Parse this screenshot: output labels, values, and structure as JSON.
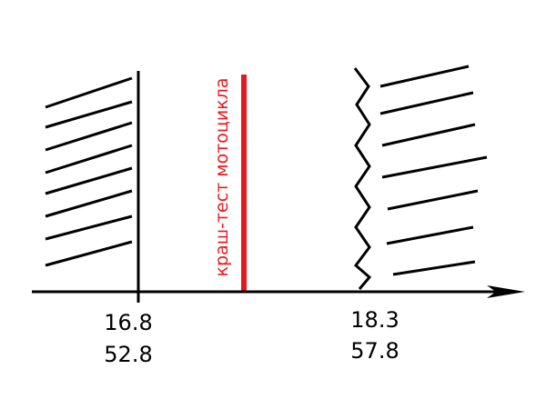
{
  "diagram": {
    "label": "краш-тест мотоцикла",
    "left_marker": {
      "top": "16.8",
      "bottom": "52.8"
    },
    "right_marker": {
      "top": "18.3",
      "bottom": "57.8"
    }
  }
}
